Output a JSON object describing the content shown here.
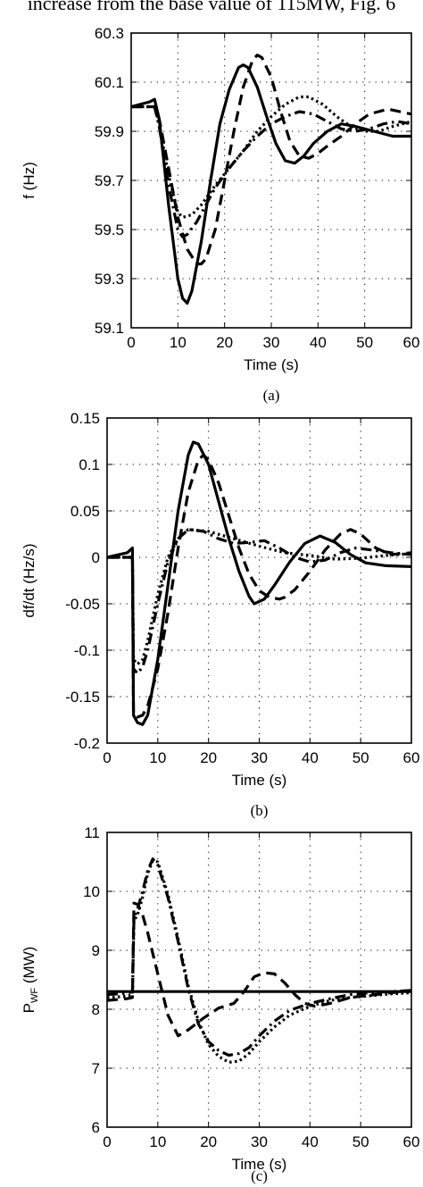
{
  "top_text": "increase from the base value of 115MW, Fig. 6",
  "chart_data": [
    {
      "type": "line",
      "caption": "(a)",
      "xlabel": "Time (s)",
      "ylabel": "f (Hz)",
      "xlim": [
        0,
        60
      ],
      "ylim": [
        59.1,
        60.3
      ],
      "xticks": [
        "0",
        "10",
        "20",
        "30",
        "40",
        "50",
        "60"
      ],
      "yticks": [
        "59.1",
        "59.3",
        "59.5",
        "59.7",
        "59.9",
        "60.1",
        "60.3"
      ],
      "grid": true,
      "series": [
        {
          "style": "solid",
          "x": [
            0,
            4,
            5,
            6,
            8,
            10,
            11,
            12,
            13,
            15,
            17,
            19,
            21,
            23,
            24,
            25,
            27,
            29,
            31,
            33,
            35,
            37,
            39,
            42,
            45,
            48,
            52,
            56,
            60
          ],
          "y": [
            60.0,
            60.02,
            60.03,
            59.95,
            59.6,
            59.3,
            59.22,
            59.2,
            59.25,
            59.45,
            59.7,
            59.93,
            60.07,
            60.16,
            60.17,
            60.16,
            60.08,
            59.96,
            59.85,
            59.78,
            59.77,
            59.8,
            59.85,
            59.9,
            59.93,
            59.92,
            59.9,
            59.88,
            59.88
          ]
        },
        {
          "style": "dashed",
          "x": [
            0,
            4,
            5,
            6,
            8,
            10,
            12,
            14,
            15,
            16,
            18,
            20,
            22,
            24,
            26,
            27,
            28,
            30,
            32,
            34,
            36,
            38,
            40,
            42,
            45,
            48,
            51,
            55,
            60
          ],
          "y": [
            60.0,
            60.0,
            60.0,
            59.95,
            59.75,
            59.55,
            59.42,
            59.36,
            59.36,
            59.38,
            59.5,
            59.7,
            59.9,
            60.08,
            60.19,
            60.21,
            60.2,
            60.12,
            59.98,
            59.86,
            59.8,
            59.79,
            59.81,
            59.84,
            59.88,
            59.93,
            59.97,
            59.99,
            59.97
          ]
        },
        {
          "style": "dotted",
          "x": [
            0,
            4,
            5,
            6,
            8,
            10,
            11,
            13,
            15,
            18,
            21,
            24,
            27,
            30,
            33,
            36,
            38,
            41,
            44,
            47,
            50,
            53,
            56,
            60
          ],
          "y": [
            60.0,
            60.0,
            60.0,
            59.93,
            59.72,
            59.57,
            59.55,
            59.56,
            59.6,
            59.68,
            59.75,
            59.82,
            59.9,
            59.96,
            60.01,
            60.04,
            60.04,
            60.01,
            59.96,
            59.92,
            59.9,
            59.9,
            59.92,
            59.94
          ]
        },
        {
          "style": "dashdot",
          "x": [
            0,
            4,
            5,
            6,
            8,
            10,
            11,
            12,
            14,
            16,
            18,
            21,
            24,
            27,
            30,
            33,
            36,
            39,
            42,
            45,
            48,
            51,
            54,
            57,
            60
          ],
          "y": [
            60.0,
            60.0,
            60.0,
            59.92,
            59.68,
            59.5,
            59.47,
            59.48,
            59.53,
            59.6,
            59.67,
            59.75,
            59.82,
            59.88,
            59.93,
            59.96,
            59.98,
            59.97,
            59.94,
            59.91,
            59.9,
            59.91,
            59.93,
            59.94,
            59.93
          ]
        }
      ]
    },
    {
      "type": "line",
      "caption": "(b)",
      "xlabel": "Time (s)",
      "ylabel": "df/dt (Hz/s)",
      "xlim": [
        0,
        60
      ],
      "ylim": [
        -0.2,
        0.15
      ],
      "xticks": [
        "0",
        "10",
        "20",
        "30",
        "40",
        "50",
        "60"
      ],
      "yticks": [
        "-0.2",
        "-0.15",
        "-0.1",
        "-0.05",
        "0",
        "0.05",
        "0.1",
        "0.15"
      ],
      "grid": true,
      "series": [
        {
          "style": "solid",
          "x": [
            0,
            4,
            5,
            5.2,
            6,
            7,
            8,
            10,
            12,
            14,
            16,
            17,
            18,
            20,
            22,
            24,
            26,
            28,
            29,
            31,
            33,
            36,
            39,
            42,
            45,
            48,
            51,
            55,
            60
          ],
          "y": [
            0.0,
            0.005,
            0.01,
            -0.17,
            -0.178,
            -0.18,
            -0.17,
            -0.11,
            -0.03,
            0.05,
            0.11,
            0.124,
            0.122,
            0.1,
            0.06,
            0.02,
            -0.015,
            -0.042,
            -0.05,
            -0.045,
            -0.03,
            -0.005,
            0.015,
            0.023,
            0.016,
            0.003,
            -0.006,
            -0.009,
            -0.01
          ]
        },
        {
          "style": "dashed",
          "x": [
            0,
            4,
            5,
            5.2,
            6,
            7,
            8,
            10,
            12,
            14,
            16,
            18,
            19,
            20,
            22,
            24,
            26,
            28,
            30,
            32,
            34,
            35,
            37,
            40,
            43,
            46,
            48,
            50,
            53,
            56,
            60
          ],
          "y": [
            0.0,
            0.0,
            0.0,
            -0.17,
            -0.172,
            -0.17,
            -0.16,
            -0.12,
            -0.06,
            0.01,
            0.07,
            0.105,
            0.11,
            0.105,
            0.08,
            0.045,
            0.01,
            -0.018,
            -0.036,
            -0.043,
            -0.045,
            -0.043,
            -0.035,
            -0.015,
            0.008,
            0.025,
            0.03,
            0.025,
            0.01,
            0.003,
            0.005
          ]
        },
        {
          "style": "dotted",
          "x": [
            0,
            4,
            5,
            5.2,
            6,
            7,
            8,
            10,
            12,
            14,
            16,
            20,
            25,
            30,
            35,
            40,
            45,
            50,
            55,
            60
          ],
          "y": [
            0.0,
            0.0,
            0.0,
            -0.11,
            -0.115,
            -0.11,
            -0.09,
            -0.04,
            0.0,
            0.02,
            0.03,
            0.028,
            0.02,
            0.012,
            0.005,
            0.002,
            -0.002,
            -0.001,
            0.002,
            0.004
          ]
        },
        {
          "style": "dashdot",
          "x": [
            0,
            4,
            5,
            5.2,
            6,
            7,
            8,
            10,
            12,
            14,
            16,
            19,
            22,
            25,
            28,
            31,
            34,
            37,
            40,
            43,
            46,
            49,
            52,
            56,
            60
          ],
          "y": [
            0.0,
            0.0,
            0.0,
            -0.12,
            -0.125,
            -0.118,
            -0.1,
            -0.05,
            -0.005,
            0.02,
            0.03,
            0.028,
            0.02,
            0.015,
            0.016,
            0.018,
            0.01,
            0.0,
            -0.005,
            -0.003,
            0.005,
            0.01,
            0.008,
            0.005,
            0.003
          ]
        }
      ]
    },
    {
      "type": "line",
      "caption": "(c)",
      "xlabel": "Time (s)",
      "ylabel": "P",
      "ylabel_subscript": "WF",
      "ylabel_unit": " (MW)",
      "xlim": [
        0,
        60
      ],
      "ylim": [
        6,
        11
      ],
      "xticks": [
        "0",
        "10",
        "20",
        "30",
        "40",
        "50",
        "60"
      ],
      "yticks": [
        "6",
        "7",
        "8",
        "9",
        "10",
        "11"
      ],
      "grid": true,
      "series": [
        {
          "style": "solid",
          "x": [
            0,
            60
          ],
          "y": [
            8.3,
            8.3
          ]
        },
        {
          "style": "dashed",
          "x": [
            0,
            4,
            5,
            5.3,
            6,
            7,
            8,
            10,
            12,
            14,
            16,
            19,
            22,
            25,
            27,
            29,
            31,
            33,
            35,
            37,
            39,
            41,
            44,
            48,
            52,
            56,
            60
          ],
          "y": [
            8.15,
            8.18,
            8.2,
            9.8,
            9.78,
            9.6,
            9.3,
            8.6,
            7.9,
            7.55,
            7.65,
            7.85,
            8.02,
            8.1,
            8.3,
            8.55,
            8.62,
            8.6,
            8.45,
            8.25,
            8.1,
            8.05,
            8.1,
            8.2,
            8.24,
            8.28,
            8.32
          ]
        },
        {
          "style": "dotted",
          "x": [
            0,
            4,
            5,
            5.3,
            6,
            7,
            8,
            9,
            10,
            12,
            14,
            16,
            18,
            20,
            22,
            24,
            26,
            28,
            30,
            33,
            36,
            40,
            44,
            48,
            52,
            56,
            60
          ],
          "y": [
            8.2,
            8.22,
            8.25,
            9.5,
            9.6,
            9.9,
            10.3,
            10.52,
            10.5,
            9.95,
            9.2,
            8.4,
            7.8,
            7.4,
            7.2,
            7.1,
            7.12,
            7.25,
            7.45,
            7.7,
            7.9,
            8.05,
            8.15,
            8.2,
            8.23,
            8.26,
            8.28
          ]
        },
        {
          "style": "dashdot",
          "x": [
            0,
            4,
            5,
            5.3,
            6,
            7,
            8,
            9,
            10,
            12,
            14,
            16,
            18,
            20,
            22,
            24,
            26,
            28,
            30,
            33,
            36,
            40,
            44,
            48,
            52,
            56,
            60
          ],
          "y": [
            8.25,
            8.27,
            8.3,
            9.55,
            9.7,
            10.0,
            10.35,
            10.55,
            10.45,
            9.9,
            9.15,
            8.35,
            7.75,
            7.45,
            7.3,
            7.22,
            7.25,
            7.35,
            7.55,
            7.8,
            7.98,
            8.1,
            8.18,
            8.25,
            8.28,
            8.3,
            8.32
          ]
        }
      ]
    }
  ]
}
